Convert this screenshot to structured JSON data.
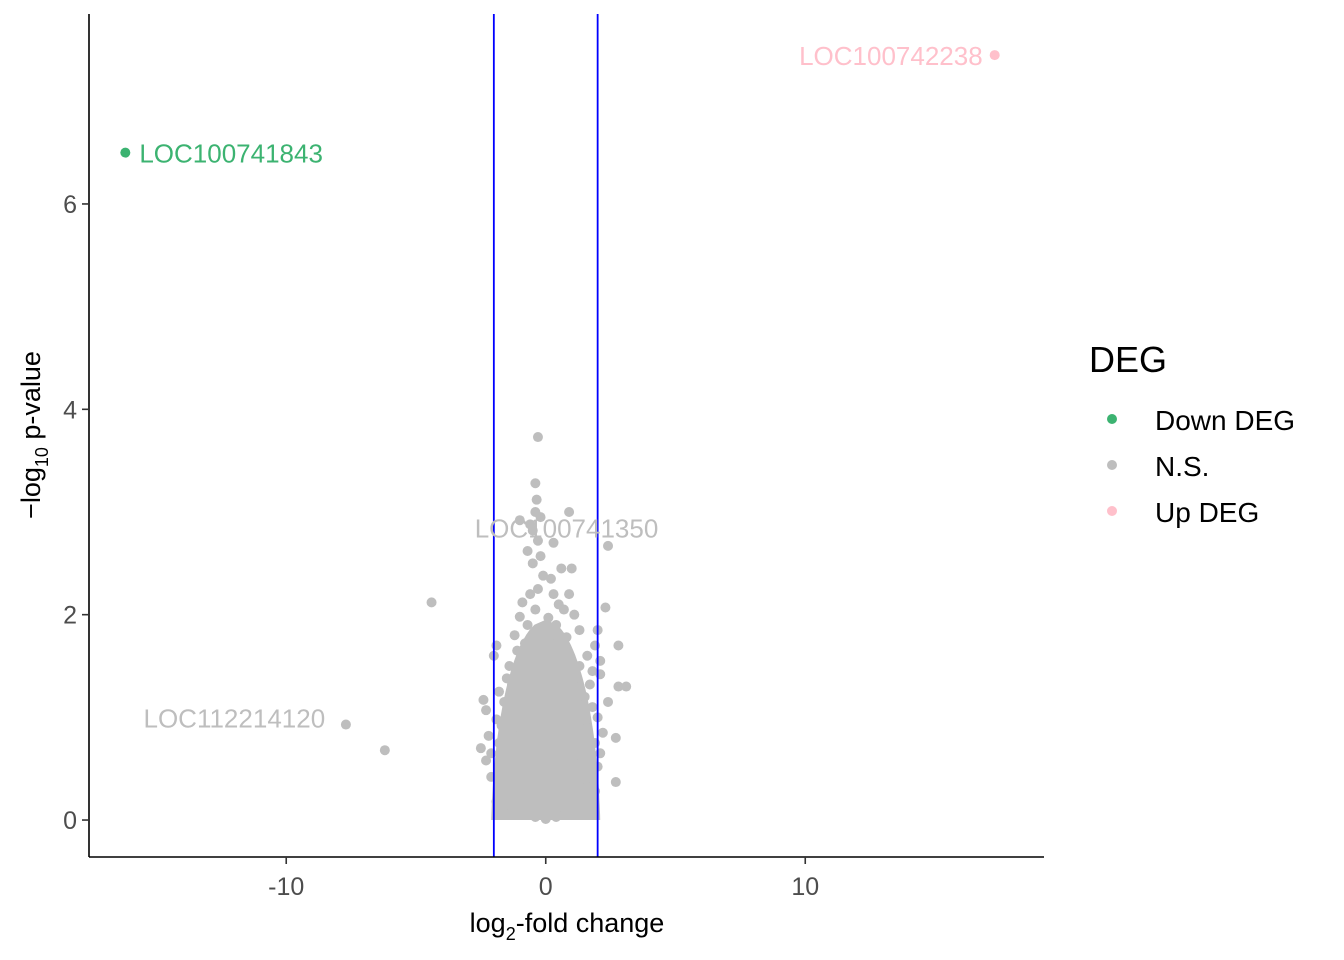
{
  "chart_data": {
    "type": "scatter",
    "title": "",
    "xlabel": {
      "prefix": "log",
      "sub": "2",
      "suffix": "-fold change"
    },
    "ylabel": {
      "prefix": "−log",
      "sub": "10",
      "suffix": " p-value"
    },
    "xlim": [
      -17.6,
      19.2
    ],
    "ylim": [
      -0.36,
      7.85
    ],
    "x_ticks": [
      -10,
      0,
      10
    ],
    "x_tick_labels": [
      "-10",
      "0",
      "10"
    ],
    "y_ticks": [
      0,
      2,
      4,
      6
    ],
    "y_tick_labels": [
      "0",
      "2",
      "4",
      "6"
    ],
    "vlines": [
      -2,
      2
    ],
    "vline_color": "#0000ff",
    "grid": false,
    "legend": {
      "title": "DEG",
      "position": "right",
      "entries": [
        {
          "label": "Down DEG",
          "color": "#3cb371"
        },
        {
          "label": "N.S.",
          "color": "#bebebe"
        },
        {
          "label": "Up DEG",
          "color": "#ffc0cb"
        }
      ]
    },
    "series": [
      {
        "name": "Down DEG",
        "color": "#3cb371",
        "points": [
          [
            -16.2,
            6.5
          ]
        ]
      },
      {
        "name": "Up DEG",
        "color": "#ffc0cb",
        "points": [
          [
            17.3,
            7.45
          ]
        ]
      },
      {
        "name": "N.S.",
        "color": "#bebebe",
        "points": [
          [
            -0.3,
            3.73
          ],
          [
            -0.4,
            3.28
          ],
          [
            -0.35,
            3.12
          ],
          [
            -0.4,
            3.0
          ],
          [
            -1.0,
            2.92
          ],
          [
            -0.6,
            2.88
          ],
          [
            -0.2,
            2.95
          ],
          [
            -0.5,
            2.82
          ],
          [
            -0.3,
            2.72
          ],
          [
            -0.7,
            2.62
          ],
          [
            -0.2,
            2.57
          ],
          [
            0.3,
            2.7
          ],
          [
            -0.5,
            2.5
          ],
          [
            0.6,
            2.45
          ],
          [
            -0.1,
            2.38
          ],
          [
            0.2,
            2.35
          ],
          [
            1.0,
            2.45
          ],
          [
            2.4,
            2.67
          ],
          [
            0.9,
            2.2
          ],
          [
            0.3,
            2.2
          ],
          [
            -0.3,
            2.25
          ],
          [
            -0.6,
            2.2
          ],
          [
            -0.9,
            2.12
          ],
          [
            0.5,
            2.1
          ],
          [
            -0.4,
            2.05
          ],
          [
            0.7,
            2.05
          ],
          [
            1.1,
            2.0
          ],
          [
            2.3,
            2.07
          ],
          [
            -1.0,
            1.98
          ],
          [
            0.1,
            1.97
          ],
          [
            -0.7,
            1.9
          ],
          [
            0.4,
            1.9
          ],
          [
            1.3,
            1.85
          ],
          [
            2.0,
            1.85
          ],
          [
            -1.2,
            1.8
          ],
          [
            -0.3,
            1.82
          ],
          [
            0.8,
            1.78
          ],
          [
            -0.8,
            1.72
          ],
          [
            0.2,
            1.72
          ],
          [
            -4.4,
            2.12
          ],
          [
            1.9,
            1.7
          ],
          [
            2.8,
            1.7
          ],
          [
            -1.9,
            1.7
          ],
          [
            -1.1,
            1.65
          ],
          [
            0.6,
            1.65
          ],
          [
            -2.0,
            1.6
          ],
          [
            1.6,
            1.6
          ],
          [
            -0.6,
            1.55
          ],
          [
            0.9,
            1.55
          ],
          [
            2.1,
            1.55
          ],
          [
            -1.4,
            1.5
          ],
          [
            1.3,
            1.5
          ],
          [
            -0.2,
            1.48
          ],
          [
            -1.0,
            1.45
          ],
          [
            1.8,
            1.45
          ],
          [
            2.1,
            1.42
          ],
          [
            -1.5,
            1.38
          ],
          [
            0.5,
            1.38
          ],
          [
            -1.3,
            1.32
          ],
          [
            1.7,
            1.32
          ],
          [
            -0.8,
            1.3
          ],
          [
            1.1,
            1.3
          ],
          [
            2.8,
            1.3
          ],
          [
            3.1,
            1.3
          ],
          [
            -1.8,
            1.25
          ],
          [
            0.3,
            1.25
          ],
          [
            1.5,
            1.2
          ],
          [
            -2.4,
            1.17
          ],
          [
            -1.6,
            1.15
          ],
          [
            0.8,
            1.15
          ],
          [
            2.4,
            1.15
          ],
          [
            1.8,
            1.1
          ],
          [
            -2.3,
            1.07
          ],
          [
            -1.2,
            1.05
          ],
          [
            1.2,
            1.05
          ],
          [
            2.0,
            1.0
          ],
          [
            -1.9,
            0.98
          ],
          [
            -0.5,
            0.95
          ],
          [
            0.6,
            0.95
          ],
          [
            -1.7,
            0.92
          ],
          [
            1.6,
            0.9
          ],
          [
            -7.7,
            0.93
          ],
          [
            -1.3,
            0.88
          ],
          [
            2.2,
            0.85
          ],
          [
            -2.2,
            0.82
          ],
          [
            1.2,
            0.82
          ],
          [
            -0.9,
            0.8
          ],
          [
            0.9,
            0.78
          ],
          [
            -1.8,
            0.75
          ],
          [
            1.9,
            0.75
          ],
          [
            2.7,
            0.8
          ],
          [
            -2.5,
            0.7
          ],
          [
            -1.4,
            0.7
          ],
          [
            1.4,
            0.7
          ],
          [
            -6.2,
            0.68
          ],
          [
            -2.1,
            0.65
          ],
          [
            2.1,
            0.65
          ],
          [
            -1.6,
            0.62
          ],
          [
            1.7,
            0.6
          ],
          [
            -2.3,
            0.58
          ],
          [
            -1.1,
            0.55
          ],
          [
            1.1,
            0.55
          ],
          [
            2.0,
            0.52
          ],
          [
            -1.8,
            0.5
          ],
          [
            1.8,
            0.48
          ],
          [
            -1.5,
            0.45
          ],
          [
            1.5,
            0.45
          ],
          [
            -2.1,
            0.42
          ],
          [
            1.2,
            0.4
          ],
          [
            -1.2,
            0.38
          ],
          [
            2.7,
            0.37
          ],
          [
            -1.6,
            0.35
          ],
          [
            1.6,
            0.32
          ],
          [
            -1.8,
            0.3
          ],
          [
            1.9,
            0.28
          ],
          [
            -1.4,
            0.25
          ],
          [
            1.3,
            0.25
          ],
          [
            -1.6,
            0.2
          ],
          [
            1.6,
            0.2
          ],
          [
            -1.9,
            0.18
          ],
          [
            1.8,
            0.15
          ],
          [
            -1.3,
            0.12
          ],
          [
            1.3,
            0.12
          ],
          [
            -1.0,
            0.08
          ],
          [
            1.0,
            0.08
          ],
          [
            -0.7,
            0.05
          ],
          [
            0.7,
            0.05
          ],
          [
            -0.4,
            0.03
          ],
          [
            0.4,
            0.03
          ],
          [
            0.0,
            0.01
          ],
          [
            0.9,
            3.0
          ]
        ]
      }
    ],
    "annotations": [
      {
        "label": "LOC100741843",
        "x": -16.2,
        "y": 6.5,
        "side": "right",
        "color": "#3cb371"
      },
      {
        "label": "LOC100742238",
        "x": 17.3,
        "y": 7.45,
        "side": "left",
        "color": "#ffc0cb"
      },
      {
        "label": "LOC100741350",
        "x": 0.8,
        "y": 2.85,
        "side": "center",
        "color": "#bebebe"
      },
      {
        "label": "LOC112214120",
        "x": -12.0,
        "y": 1.0,
        "side": "center",
        "color": "#bebebe"
      }
    ]
  }
}
